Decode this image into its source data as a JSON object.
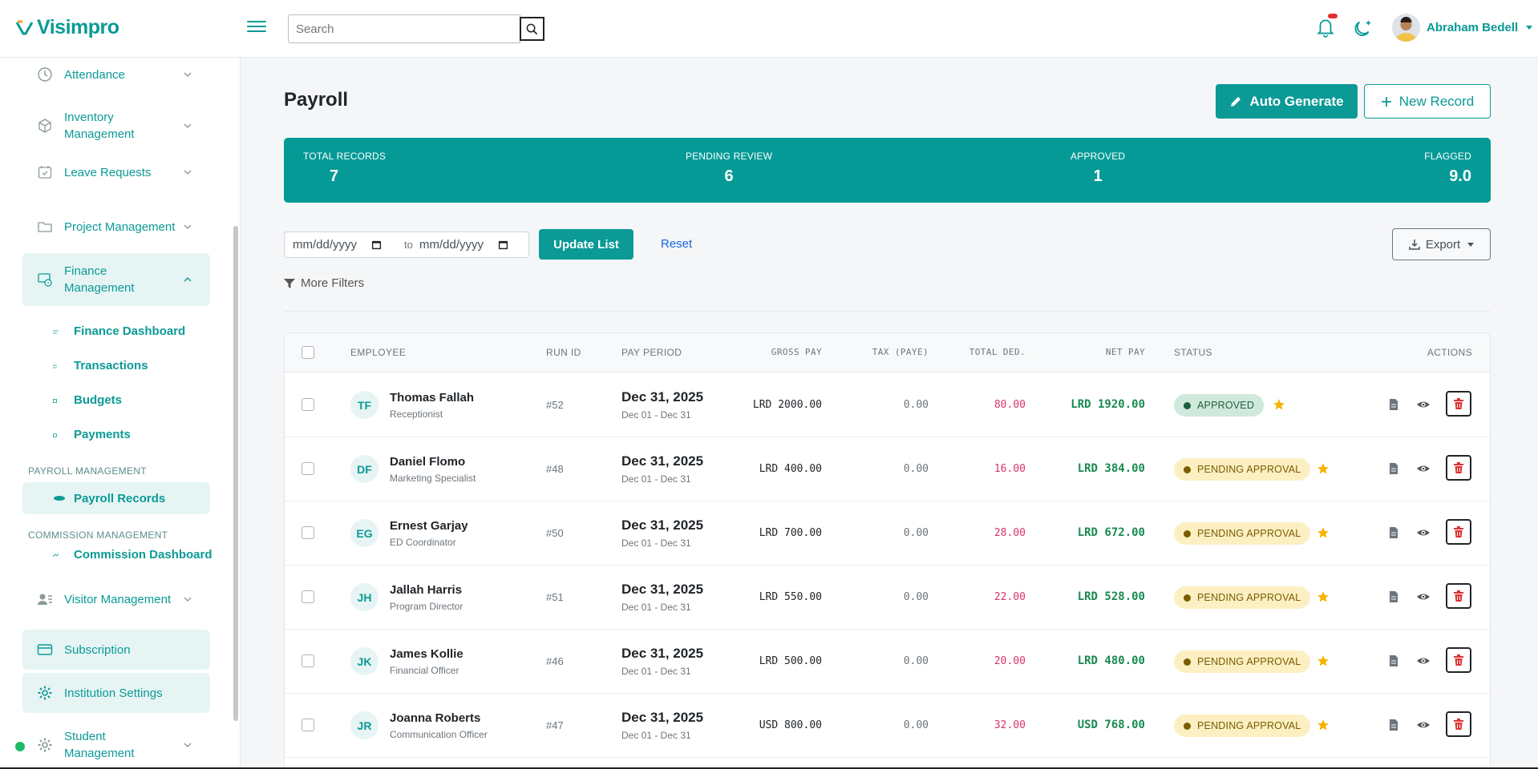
{
  "header": {
    "logo": "Visimpro",
    "search_placeholder": "Search",
    "user_name": "Abraham Bedell"
  },
  "sidebar": {
    "items": [
      {
        "label": "Attendance"
      },
      {
        "label": "Inventory Management"
      },
      {
        "label": "Leave Requests"
      },
      {
        "label": "Project Management"
      },
      {
        "label": "Finance Management"
      }
    ],
    "finance_sub": [
      {
        "label": "Finance Dashboard"
      },
      {
        "label": "Transactions"
      },
      {
        "label": "Budgets"
      },
      {
        "label": "Payments"
      }
    ],
    "payroll_section": "PAYROLL MANAGEMENT",
    "payroll_records": "Payroll Records",
    "commission_section": "COMMISSION MANAGEMENT",
    "commission_dashboard": "Commission Dashboard",
    "visitor": "Visitor Management",
    "subscription": "Subscription",
    "institution": "Institution Settings",
    "student": "Student Management"
  },
  "page": {
    "title": "Payroll",
    "auto_generate": "Auto Generate",
    "new_record": "New Record"
  },
  "stats": [
    {
      "label": "TOTAL RECORDS",
      "value": "7"
    },
    {
      "label": "PENDING REVIEW",
      "value": "6"
    },
    {
      "label": "APPROVED",
      "value": "1"
    },
    {
      "label": "FLAGGED",
      "value": "9.0"
    }
  ],
  "filters": {
    "date_from": "mm/dd/yyyy",
    "to_label": "to",
    "date_to": "mm/dd/yyyy",
    "update": "Update List",
    "reset": "Reset",
    "export": "Export",
    "more_filters": "More Filters"
  },
  "table": {
    "headers": {
      "employee": "EMPLOYEE",
      "run_id": "RUN ID",
      "pay_period": "PAY PERIOD",
      "gross": "GROSS PAY",
      "tax": "TAX (PAYE)",
      "ded": "TOTAL DED.",
      "net": "NET PAY",
      "status": "STATUS",
      "actions": "ACTIONS"
    },
    "rows": [
      {
        "initials": "TF",
        "name": "Thomas Fallah",
        "role": "Receptionist",
        "run_id": "#52",
        "period": "Dec 31, 2025",
        "range": "Dec 01 - Dec 31",
        "gross": "LRD 2000.00",
        "tax": "0.00",
        "ded": "80.00",
        "net": "LRD 1920.00",
        "status": "APPROVED",
        "status_type": "approved"
      },
      {
        "initials": "DF",
        "name": "Daniel Flomo",
        "role": "Marketing Specialist",
        "run_id": "#48",
        "period": "Dec 31, 2025",
        "range": "Dec 01 - Dec 31",
        "gross": "LRD 400.00",
        "tax": "0.00",
        "ded": "16.00",
        "net": "LRD 384.00",
        "status": "PENDING APPROVAL",
        "status_type": "pending"
      },
      {
        "initials": "EG",
        "name": "Ernest Garjay",
        "role": "ED Coordinator",
        "run_id": "#50",
        "period": "Dec 31, 2025",
        "range": "Dec 01 - Dec 31",
        "gross": "LRD 700.00",
        "tax": "0.00",
        "ded": "28.00",
        "net": "LRD 672.00",
        "status": "PENDING APPROVAL",
        "status_type": "pending"
      },
      {
        "initials": "JH",
        "name": "Jallah Harris",
        "role": "Program Director",
        "run_id": "#51",
        "period": "Dec 31, 2025",
        "range": "Dec 01 - Dec 31",
        "gross": "LRD 550.00",
        "tax": "0.00",
        "ded": "22.00",
        "net": "LRD 528.00",
        "status": "PENDING APPROVAL",
        "status_type": "pending"
      },
      {
        "initials": "JK",
        "name": "James Kollie",
        "role": "Financial Officer",
        "run_id": "#46",
        "period": "Dec 31, 2025",
        "range": "Dec 01 - Dec 31",
        "gross": "LRD 500.00",
        "tax": "0.00",
        "ded": "20.00",
        "net": "LRD 480.00",
        "status": "PENDING APPROVAL",
        "status_type": "pending"
      },
      {
        "initials": "JR",
        "name": "Joanna Roberts",
        "role": "Communication Officer",
        "run_id": "#47",
        "period": "Dec 31, 2025",
        "range": "Dec 01 - Dec 31",
        "gross": "USD 800.00",
        "tax": "0.00",
        "ded": "32.00",
        "net": "USD 768.00",
        "status": "PENDING APPROVAL",
        "status_type": "pending"
      }
    ]
  },
  "colors": {
    "brand": "#0b9a96",
    "deduction": "#d6336c",
    "net": "#1a8a52",
    "approved_bg": "#cfe9dc",
    "pending_bg": "#fcefc2",
    "star": "#f5b301",
    "delete": "#e03131"
  }
}
